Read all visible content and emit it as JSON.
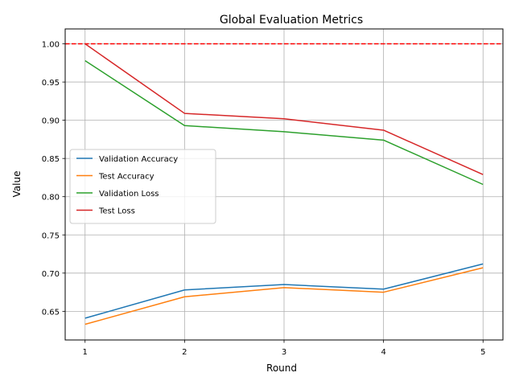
{
  "chart_data": {
    "type": "line",
    "title": "Global Evaluation Metrics",
    "xlabel": "Round",
    "ylabel": "Value",
    "x": [
      1,
      2,
      3,
      4,
      5
    ],
    "xlim": [
      0.8,
      5.2
    ],
    "ylim": [
      0.6125,
      1.0195
    ],
    "xticks": [
      1,
      2,
      3,
      4,
      5
    ],
    "yticks": [
      0.65,
      0.7,
      0.75,
      0.8,
      0.85,
      0.9,
      0.95,
      1.0
    ],
    "grid": true,
    "legend_position": "center-left",
    "series": [
      {
        "name": "Validation Accuracy",
        "color": "#1f77b4",
        "values": [
          0.641,
          0.678,
          0.685,
          0.679,
          0.712
        ]
      },
      {
        "name": "Test Accuracy",
        "color": "#ff7f0e",
        "values": [
          0.633,
          0.669,
          0.681,
          0.675,
          0.707
        ]
      },
      {
        "name": "Validation Loss",
        "color": "#2ca02c",
        "values": [
          0.978,
          0.893,
          0.885,
          0.874,
          0.816
        ]
      },
      {
        "name": "Test Loss",
        "color": "#d62728",
        "values": [
          1.0,
          0.909,
          0.902,
          0.887,
          0.829
        ]
      }
    ],
    "reference_line": {
      "y": 1.0,
      "color": "#ff0000",
      "style": "dashed"
    }
  }
}
